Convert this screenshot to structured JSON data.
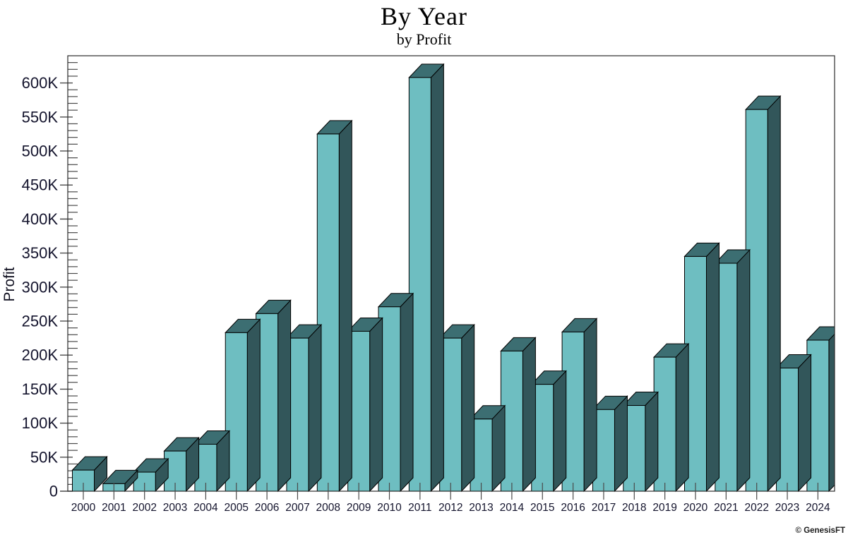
{
  "page": {
    "background": "#ffffff"
  },
  "footer": {
    "watermark": "© GenesisFT"
  },
  "chart_data": {
    "type": "bar",
    "style": "3d-columns",
    "title": "By Year",
    "subtitle": "by Profit",
    "xlabel": "",
    "ylabel": "Profit",
    "legend": "none",
    "grid": "off",
    "categories": [
      "2000",
      "2001",
      "2002",
      "2003",
      "2004",
      "2005",
      "2006",
      "2007",
      "2008",
      "2009",
      "2010",
      "2011",
      "2012",
      "2013",
      "2014",
      "2015",
      "2016",
      "2017",
      "2018",
      "2019",
      "2020",
      "2021",
      "2022",
      "2023",
      "2024"
    ],
    "values": [
      31000,
      11000,
      28000,
      59000,
      69000,
      233000,
      261000,
      225000,
      525000,
      235000,
      271000,
      608000,
      225000,
      106000,
      206000,
      157000,
      234000,
      120000,
      126000,
      197000,
      345000,
      335000,
      561000,
      181000,
      222000
    ],
    "ylim": [
      0,
      640000
    ],
    "y_major_step": 50000,
    "y_minor_step": 10000,
    "y_tick_labels": [
      "0",
      "50K",
      "100K",
      "150K",
      "200K",
      "250K",
      "300K",
      "350K",
      "400K",
      "450K",
      "500K",
      "550K",
      "600K"
    ],
    "colors": {
      "bar_front": "#6ebec1",
      "bar_side": "#32565a",
      "bar_top": "#3c6e72",
      "bar_outline": "#000000",
      "axis": "#2b2b2b",
      "tick": "#4a4a4a",
      "text": "#14142d"
    }
  }
}
